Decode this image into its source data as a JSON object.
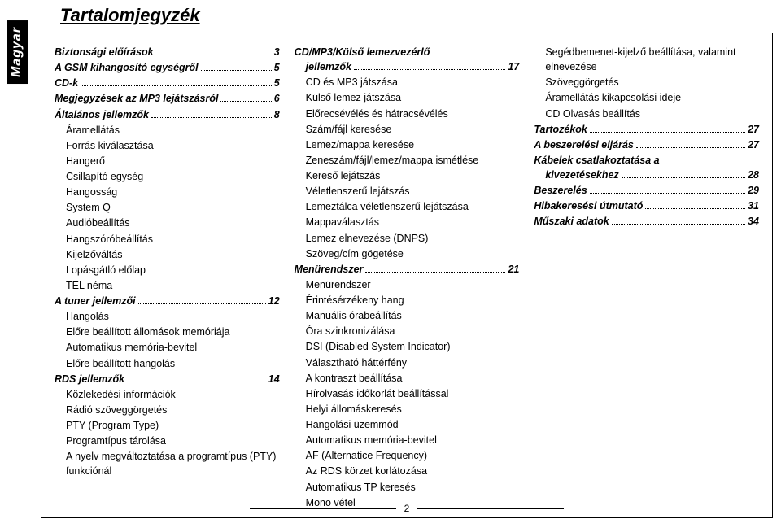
{
  "sideTab": "Magyar",
  "title": "Tartalomjegyzék",
  "pageNumber": "2",
  "columns": [
    [
      {
        "t": "h",
        "label": "Biztonsági előírások",
        "page": "3"
      },
      {
        "t": "h",
        "label": "A GSM kihangosító egységről",
        "page": "5"
      },
      {
        "t": "h",
        "label": "CD-k",
        "page": "5"
      },
      {
        "t": "h",
        "label": "Megjegyzések az MP3 lejátszásról",
        "page": "6"
      },
      {
        "t": "h",
        "label": "Általános jellemzők",
        "page": "8"
      },
      {
        "t": "s",
        "label": "Áramellátás"
      },
      {
        "t": "s",
        "label": "Forrás kiválasztása"
      },
      {
        "t": "s",
        "label": "Hangerő"
      },
      {
        "t": "s",
        "label": "Csillapító egység"
      },
      {
        "t": "s",
        "label": "Hangosság"
      },
      {
        "t": "s",
        "label": "System Q"
      },
      {
        "t": "s",
        "label": "Audióbeállítás"
      },
      {
        "t": "s",
        "label": "Hangszóróbeállítás"
      },
      {
        "t": "s",
        "label": "Kijelzőváltás"
      },
      {
        "t": "s",
        "label": "Lopásgátló előlap"
      },
      {
        "t": "s",
        "label": "TEL néma"
      },
      {
        "t": "h",
        "label": "A tuner jellemzői",
        "page": "12"
      },
      {
        "t": "s",
        "label": "Hangolás"
      },
      {
        "t": "s",
        "label": "Előre beállított állomások memóriája"
      },
      {
        "t": "s",
        "label": "Automatikus memória-bevitel"
      },
      {
        "t": "s",
        "label": "Előre beállított hangolás"
      },
      {
        "t": "h",
        "label": "RDS jellemzők",
        "page": "14"
      },
      {
        "t": "s",
        "label": "Közlekedési információk"
      },
      {
        "t": "s",
        "label": "Rádió szöveggörgetés"
      },
      {
        "t": "s",
        "label": "PTY (Program Type)"
      },
      {
        "t": "s",
        "label": "Programtípus tárolása"
      },
      {
        "t": "s",
        "label": "A nyelv megváltoztatása a programtípus (PTY) funkciónál"
      }
    ],
    [
      {
        "t": "hwrap",
        "label": "CD/MP3/Külső lemezvezérlő jellemzők",
        "page": "17"
      },
      {
        "t": "s",
        "label": "CD és MP3 játszása"
      },
      {
        "t": "s",
        "label": "Külső lemez játszása"
      },
      {
        "t": "s",
        "label": "Előrecsévélés és hátracsévélés"
      },
      {
        "t": "s",
        "label": "Szám/fájl keresése"
      },
      {
        "t": "s",
        "label": "Lemez/mappa keresése"
      },
      {
        "t": "s",
        "label": "Zeneszám/fájl/lemez/mappa ismétlése"
      },
      {
        "t": "s",
        "label": "Kereső lejátszás"
      },
      {
        "t": "s",
        "label": "Véletlenszerű lejátszás"
      },
      {
        "t": "s",
        "label": "Lemeztálca véletlenszerű lejátszása"
      },
      {
        "t": "s",
        "label": "Mappaválasztás"
      },
      {
        "t": "s",
        "label": "Lemez elnevezése (DNPS)"
      },
      {
        "t": "s",
        "label": "Szöveg/cím gögetése"
      },
      {
        "t": "h",
        "label": "Menürendszer",
        "page": "21"
      },
      {
        "t": "s",
        "label": "Menürendszer"
      },
      {
        "t": "s",
        "label": "Érintésérzékeny hang"
      },
      {
        "t": "s",
        "label": "Manuális órabeállítás"
      },
      {
        "t": "s",
        "label": "Óra szinkronizálása"
      },
      {
        "t": "s",
        "label": "DSI (Disabled System Indicator)"
      },
      {
        "t": "s",
        "label": "Választható háttérfény"
      },
      {
        "t": "s",
        "label": "A kontraszt beállítása"
      },
      {
        "t": "s",
        "label": "Hírolvasás időkorlát beállítással"
      },
      {
        "t": "s",
        "label": "Helyi állomáskeresés"
      },
      {
        "t": "s",
        "label": "Hangolási üzemmód"
      },
      {
        "t": "s",
        "label": "Automatikus memória-bevitel"
      },
      {
        "t": "s",
        "label": "AF (Alternatice Frequency)"
      },
      {
        "t": "s",
        "label": "Az RDS körzet korlátozása"
      },
      {
        "t": "s",
        "label": "Automatikus TP keresés"
      },
      {
        "t": "s",
        "label": "Mono vétel"
      }
    ],
    [
      {
        "t": "s",
        "label": "Segédbemenet-kijelző beállítása, valamint elnevezése"
      },
      {
        "t": "s",
        "label": "Szöveggörgetés"
      },
      {
        "t": "s",
        "label": "Áramellátás kikapcsolási ideje"
      },
      {
        "t": "s",
        "label": "CD Olvasás beállítás"
      },
      {
        "t": "h",
        "label": "Tartozékok",
        "page": "27"
      },
      {
        "t": "h",
        "label": "A beszerelési eljárás",
        "page": "27"
      },
      {
        "t": "hwrap",
        "label": "Kábelek csatlakoztatása a kivezetésekhez",
        "page": "28"
      },
      {
        "t": "h",
        "label": "Beszerelés",
        "page": "29"
      },
      {
        "t": "h",
        "label": "Hibakeresési útmutató",
        "page": "31"
      },
      {
        "t": "h",
        "label": "Műszaki adatok",
        "page": "34"
      }
    ]
  ]
}
